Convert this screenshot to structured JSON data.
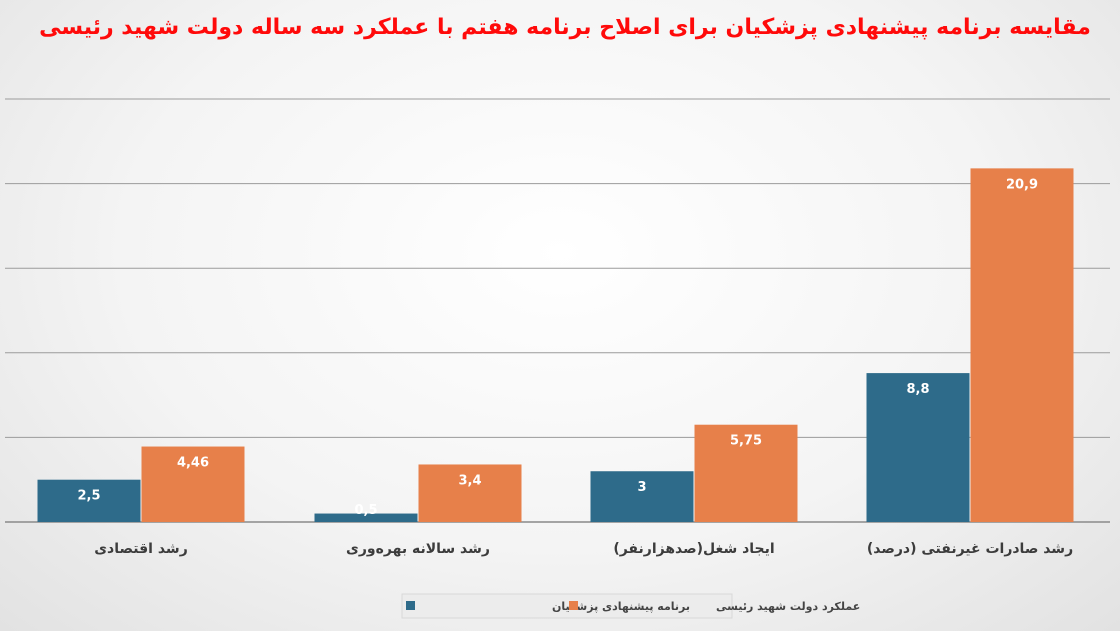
{
  "chart_data": {
    "type": "bar",
    "title": "مقایسه برنامه پیشنهادی پزشکیان برای اصلاح برنامه هفتم با عملکرد سه ساله دولت شهید رئیسی",
    "categories": [
      "رشد اقتصادی",
      "رشد سالانه بهره‌وری",
      "ایجاد شغل(صدهزارنفر)",
      "رشد صادرات غیرنفتی (درصد)"
    ],
    "series": [
      {
        "name": "برنامه پیشنهادی پزشکیان",
        "color": "#2e6b8a",
        "values": [
          2.5,
          0.5,
          3,
          8.8
        ],
        "labels": [
          "2,5",
          "0,5",
          "3",
          "8,8"
        ]
      },
      {
        "name": "عملکرد دولت شهید رئیسی",
        "color": "#e7804a",
        "values": [
          4.46,
          3.4,
          5.75,
          20.9
        ],
        "labels": [
          "4,46",
          "3,4",
          "5,75",
          "20,9"
        ]
      }
    ],
    "ylim": [
      0,
      25
    ],
    "grid": true,
    "legend_position": "bottom"
  }
}
